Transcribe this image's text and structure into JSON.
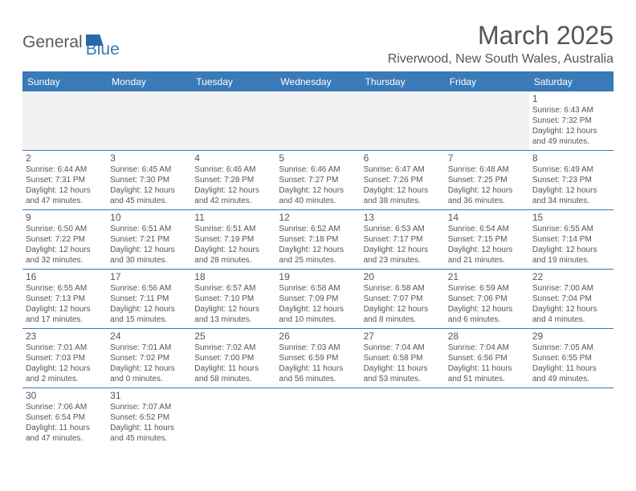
{
  "logo": {
    "text_general": "General",
    "text_blue": "Blue"
  },
  "header": {
    "month_title": "March 2025",
    "location": "Riverwood, New South Wales, Australia"
  },
  "colors": {
    "header_blue": "#3a7ab8",
    "text_gray": "#555555",
    "empty_bg": "#f1f1f1",
    "white": "#ffffff"
  },
  "weekdays": [
    "Sunday",
    "Monday",
    "Tuesday",
    "Wednesday",
    "Thursday",
    "Friday",
    "Saturday"
  ],
  "weeks": [
    [
      {
        "empty": true
      },
      {
        "empty": true
      },
      {
        "empty": true
      },
      {
        "empty": true
      },
      {
        "empty": true
      },
      {
        "empty": true
      },
      {
        "day": "1",
        "sunrise": "Sunrise: 6:43 AM",
        "sunset": "Sunset: 7:32 PM",
        "daylight1": "Daylight: 12 hours",
        "daylight2": "and 49 minutes."
      }
    ],
    [
      {
        "day": "2",
        "sunrise": "Sunrise: 6:44 AM",
        "sunset": "Sunset: 7:31 PM",
        "daylight1": "Daylight: 12 hours",
        "daylight2": "and 47 minutes."
      },
      {
        "day": "3",
        "sunrise": "Sunrise: 6:45 AM",
        "sunset": "Sunset: 7:30 PM",
        "daylight1": "Daylight: 12 hours",
        "daylight2": "and 45 minutes."
      },
      {
        "day": "4",
        "sunrise": "Sunrise: 6:46 AM",
        "sunset": "Sunset: 7:28 PM",
        "daylight1": "Daylight: 12 hours",
        "daylight2": "and 42 minutes."
      },
      {
        "day": "5",
        "sunrise": "Sunrise: 6:46 AM",
        "sunset": "Sunset: 7:27 PM",
        "daylight1": "Daylight: 12 hours",
        "daylight2": "and 40 minutes."
      },
      {
        "day": "6",
        "sunrise": "Sunrise: 6:47 AM",
        "sunset": "Sunset: 7:26 PM",
        "daylight1": "Daylight: 12 hours",
        "daylight2": "and 38 minutes."
      },
      {
        "day": "7",
        "sunrise": "Sunrise: 6:48 AM",
        "sunset": "Sunset: 7:25 PM",
        "daylight1": "Daylight: 12 hours",
        "daylight2": "and 36 minutes."
      },
      {
        "day": "8",
        "sunrise": "Sunrise: 6:49 AM",
        "sunset": "Sunset: 7:23 PM",
        "daylight1": "Daylight: 12 hours",
        "daylight2": "and 34 minutes."
      }
    ],
    [
      {
        "day": "9",
        "sunrise": "Sunrise: 6:50 AM",
        "sunset": "Sunset: 7:22 PM",
        "daylight1": "Daylight: 12 hours",
        "daylight2": "and 32 minutes."
      },
      {
        "day": "10",
        "sunrise": "Sunrise: 6:51 AM",
        "sunset": "Sunset: 7:21 PM",
        "daylight1": "Daylight: 12 hours",
        "daylight2": "and 30 minutes."
      },
      {
        "day": "11",
        "sunrise": "Sunrise: 6:51 AM",
        "sunset": "Sunset: 7:19 PM",
        "daylight1": "Daylight: 12 hours",
        "daylight2": "and 28 minutes."
      },
      {
        "day": "12",
        "sunrise": "Sunrise: 6:52 AM",
        "sunset": "Sunset: 7:18 PM",
        "daylight1": "Daylight: 12 hours",
        "daylight2": "and 25 minutes."
      },
      {
        "day": "13",
        "sunrise": "Sunrise: 6:53 AM",
        "sunset": "Sunset: 7:17 PM",
        "daylight1": "Daylight: 12 hours",
        "daylight2": "and 23 minutes."
      },
      {
        "day": "14",
        "sunrise": "Sunrise: 6:54 AM",
        "sunset": "Sunset: 7:15 PM",
        "daylight1": "Daylight: 12 hours",
        "daylight2": "and 21 minutes."
      },
      {
        "day": "15",
        "sunrise": "Sunrise: 6:55 AM",
        "sunset": "Sunset: 7:14 PM",
        "daylight1": "Daylight: 12 hours",
        "daylight2": "and 19 minutes."
      }
    ],
    [
      {
        "day": "16",
        "sunrise": "Sunrise: 6:55 AM",
        "sunset": "Sunset: 7:13 PM",
        "daylight1": "Daylight: 12 hours",
        "daylight2": "and 17 minutes."
      },
      {
        "day": "17",
        "sunrise": "Sunrise: 6:56 AM",
        "sunset": "Sunset: 7:11 PM",
        "daylight1": "Daylight: 12 hours",
        "daylight2": "and 15 minutes."
      },
      {
        "day": "18",
        "sunrise": "Sunrise: 6:57 AM",
        "sunset": "Sunset: 7:10 PM",
        "daylight1": "Daylight: 12 hours",
        "daylight2": "and 13 minutes."
      },
      {
        "day": "19",
        "sunrise": "Sunrise: 6:58 AM",
        "sunset": "Sunset: 7:09 PM",
        "daylight1": "Daylight: 12 hours",
        "daylight2": "and 10 minutes."
      },
      {
        "day": "20",
        "sunrise": "Sunrise: 6:58 AM",
        "sunset": "Sunset: 7:07 PM",
        "daylight1": "Daylight: 12 hours",
        "daylight2": "and 8 minutes."
      },
      {
        "day": "21",
        "sunrise": "Sunrise: 6:59 AM",
        "sunset": "Sunset: 7:06 PM",
        "daylight1": "Daylight: 12 hours",
        "daylight2": "and 6 minutes."
      },
      {
        "day": "22",
        "sunrise": "Sunrise: 7:00 AM",
        "sunset": "Sunset: 7:04 PM",
        "daylight1": "Daylight: 12 hours",
        "daylight2": "and 4 minutes."
      }
    ],
    [
      {
        "day": "23",
        "sunrise": "Sunrise: 7:01 AM",
        "sunset": "Sunset: 7:03 PM",
        "daylight1": "Daylight: 12 hours",
        "daylight2": "and 2 minutes."
      },
      {
        "day": "24",
        "sunrise": "Sunrise: 7:01 AM",
        "sunset": "Sunset: 7:02 PM",
        "daylight1": "Daylight: 12 hours",
        "daylight2": "and 0 minutes."
      },
      {
        "day": "25",
        "sunrise": "Sunrise: 7:02 AM",
        "sunset": "Sunset: 7:00 PM",
        "daylight1": "Daylight: 11 hours",
        "daylight2": "and 58 minutes."
      },
      {
        "day": "26",
        "sunrise": "Sunrise: 7:03 AM",
        "sunset": "Sunset: 6:59 PM",
        "daylight1": "Daylight: 11 hours",
        "daylight2": "and 56 minutes."
      },
      {
        "day": "27",
        "sunrise": "Sunrise: 7:04 AM",
        "sunset": "Sunset: 6:58 PM",
        "daylight1": "Daylight: 11 hours",
        "daylight2": "and 53 minutes."
      },
      {
        "day": "28",
        "sunrise": "Sunrise: 7:04 AM",
        "sunset": "Sunset: 6:56 PM",
        "daylight1": "Daylight: 11 hours",
        "daylight2": "and 51 minutes."
      },
      {
        "day": "29",
        "sunrise": "Sunrise: 7:05 AM",
        "sunset": "Sunset: 6:55 PM",
        "daylight1": "Daylight: 11 hours",
        "daylight2": "and 49 minutes."
      }
    ],
    [
      {
        "day": "30",
        "sunrise": "Sunrise: 7:06 AM",
        "sunset": "Sunset: 6:54 PM",
        "daylight1": "Daylight: 11 hours",
        "daylight2": "and 47 minutes."
      },
      {
        "day": "31",
        "sunrise": "Sunrise: 7:07 AM",
        "sunset": "Sunset: 6:52 PM",
        "daylight1": "Daylight: 11 hours",
        "daylight2": "and 45 minutes."
      },
      {
        "empty": true,
        "blank": true
      },
      {
        "empty": true,
        "blank": true
      },
      {
        "empty": true,
        "blank": true
      },
      {
        "empty": true,
        "blank": true
      },
      {
        "empty": true,
        "blank": true
      }
    ]
  ]
}
